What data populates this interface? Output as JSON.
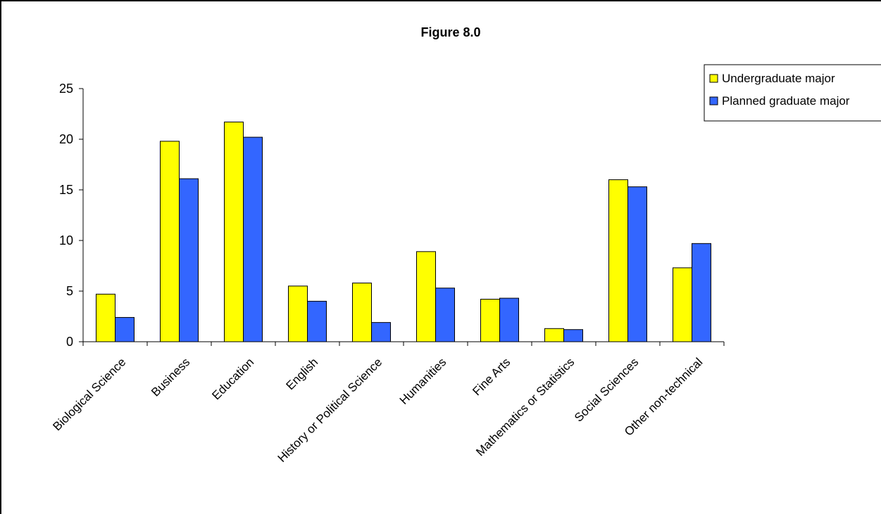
{
  "chart_data": {
    "type": "bar",
    "title": "Figure 8.0",
    "xlabel": "",
    "ylabel": "",
    "ylim": [
      0,
      25
    ],
    "yticks": [
      0,
      5,
      10,
      15,
      20,
      25
    ],
    "categories": [
      "Biological Science",
      "Business",
      "Education",
      "English",
      "History or Political Science",
      "Humanities",
      "Fine Arts",
      "Mathematics or Statistics",
      "Social Sciences",
      "Other non-technical"
    ],
    "series": [
      {
        "name": "Undergraduate major",
        "color": "#FFFF00",
        "values": [
          4.7,
          19.8,
          21.7,
          5.5,
          5.8,
          8.9,
          4.2,
          1.3,
          16.0,
          7.3
        ]
      },
      {
        "name": "Planned graduate major",
        "color": "#3366FF",
        "values": [
          2.4,
          16.1,
          20.2,
          4.0,
          1.9,
          5.3,
          4.3,
          1.2,
          15.3,
          9.7
        ]
      }
    ],
    "grid": false,
    "legend_position": "top-right"
  }
}
